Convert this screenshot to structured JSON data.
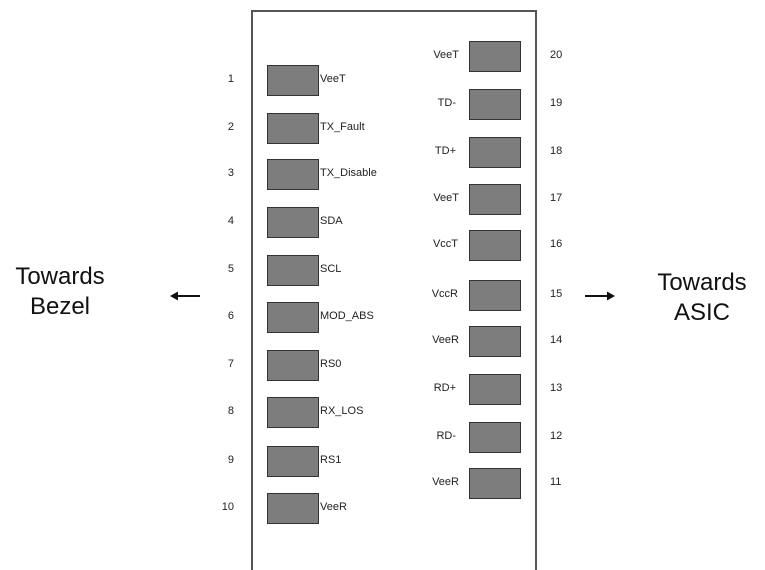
{
  "left_side": {
    "line1": "Towards",
    "line2": "Bezel"
  },
  "right_side": {
    "line1": "Towards",
    "line2": "ASIC"
  },
  "left_pins": [
    {
      "num": "1",
      "signal": "VeeT"
    },
    {
      "num": "2",
      "signal": "TX_Fault"
    },
    {
      "num": "3",
      "signal": "TX_Disable"
    },
    {
      "num": "4",
      "signal": "SDA"
    },
    {
      "num": "5",
      "signal": "SCL"
    },
    {
      "num": "6",
      "signal": "MOD_ABS"
    },
    {
      "num": "7",
      "signal": "RS0"
    },
    {
      "num": "8",
      "signal": "RX_LOS"
    },
    {
      "num": "9",
      "signal": "RS1"
    },
    {
      "num": "10",
      "signal": "VeeR"
    }
  ],
  "right_pins": [
    {
      "num": "20",
      "signal": "VeeT"
    },
    {
      "num": "19",
      "signal": "TD-"
    },
    {
      "num": "18",
      "signal": "TD+"
    },
    {
      "num": "17",
      "signal": "VeeT"
    },
    {
      "num": "16",
      "signal": "VccT"
    },
    {
      "num": "15",
      "signal": "VccR"
    },
    {
      "num": "14",
      "signal": "VeeR"
    },
    {
      "num": "13",
      "signal": "RD+"
    },
    {
      "num": "12",
      "signal": "RD-"
    },
    {
      "num": "11",
      "signal": "VeeR"
    }
  ],
  "colors": {
    "pad_fill": "#7d7d7d",
    "pad_border": "#333333",
    "board_border": "#555555"
  }
}
